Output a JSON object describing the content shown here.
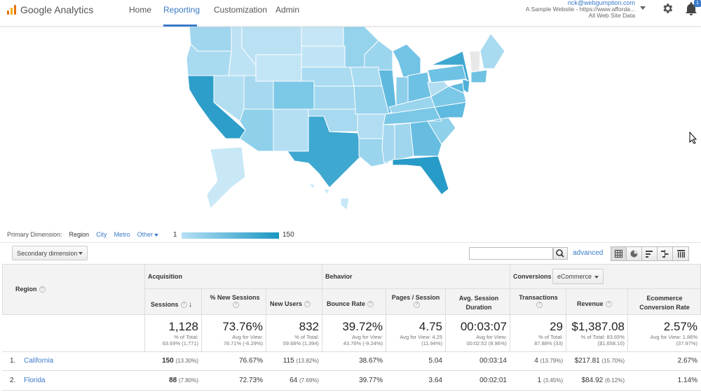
{
  "app": {
    "name": "Google Analytics"
  },
  "nav": {
    "home": "Home",
    "reporting": "Reporting",
    "customization": "Customization",
    "admin": "Admin"
  },
  "account": {
    "email": "rick@webgumption.com",
    "property": "A Sample Website - https://www.afforda...",
    "view": "All Web Site Data",
    "notifications": "1"
  },
  "map": {
    "legend_min": "1",
    "legend_max": "150",
    "scale_colors": [
      "#b6e0f5",
      "#1a97c2"
    ]
  },
  "primary_dimension": {
    "label": "Primary Dimension:",
    "options": [
      "Region",
      "City",
      "Metro",
      "Other"
    ],
    "selected": "Region"
  },
  "secondary_dimension": "Secondary dimension",
  "search": {
    "value": "",
    "advanced": "advanced"
  },
  "table": {
    "region_header": "Region",
    "groups": {
      "acquisition": "Acquisition",
      "behavior": "Behavior",
      "conversions": "Conversions",
      "conversion_select": "eCommerce"
    },
    "columns": [
      "Sessions",
      "% New Sessions",
      "New Users",
      "Bounce Rate",
      "Pages / Session",
      "Avg. Session Duration",
      "Transactions",
      "Revenue",
      "Ecommerce Conversion Rate"
    ],
    "totals": [
      {
        "value": "1,128",
        "sub1": "% of Total:",
        "sub2": "63.69% (1,771)"
      },
      {
        "value": "73.76%",
        "sub1": "Avg for View:",
        "sub2": "78.71% (-6.29%)"
      },
      {
        "value": "832",
        "sub1": "% of Total:",
        "sub2": "59.68% (1,394)"
      },
      {
        "value": "39.72%",
        "sub1": "Avg for View:",
        "sub2": "43.76% (-9.24%)"
      },
      {
        "value": "4.75",
        "sub1": "Avg for View: 4.25",
        "sub2": "(11.94%)"
      },
      {
        "value": "00:03:07",
        "sub1": "Avg for View:",
        "sub2": "00:02:52 (8.96%)"
      },
      {
        "value": "29",
        "sub1": "% of Total:",
        "sub2": "87.88% (33)"
      },
      {
        "value": "$1,387.08",
        "sub1": "% of Total: 83.65%",
        "sub2": "($1,658.10)"
      },
      {
        "value": "2.57%",
        "sub1": "Avg for View: 1.86%",
        "sub2": "(37.97%)"
      }
    ],
    "rows": [
      {
        "index": "1.",
        "region": "California",
        "sessions": "150",
        "sessions_pct": "(13.30%)",
        "new_sessions": "76.67%",
        "new_users": "115",
        "new_users_pct": "(13.82%)",
        "bounce": "38.67%",
        "pages": "5.04",
        "duration": "00:03:14",
        "transactions": "4",
        "transactions_pct": "(13.79%)",
        "revenue": "$217.81",
        "revenue_pct": "(15.70%)",
        "conv": "2.67%"
      },
      {
        "index": "2.",
        "region": "Florida",
        "sessions": "88",
        "sessions_pct": "(7.80%)",
        "new_sessions": "72.73%",
        "new_users": "64",
        "new_users_pct": "(7.69%)",
        "bounce": "39.77%",
        "pages": "3.64",
        "duration": "00:02:01",
        "transactions": "1",
        "transactions_pct": "(3.45%)",
        "revenue": "$84.92",
        "revenue_pct": "(6.12%)",
        "conv": "1.14%"
      }
    ]
  }
}
